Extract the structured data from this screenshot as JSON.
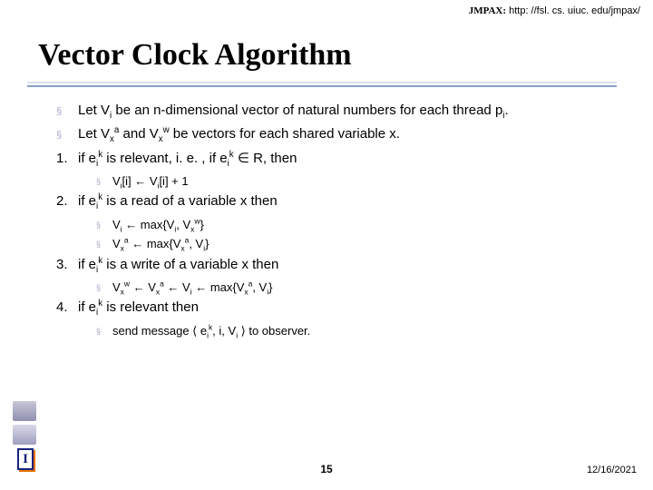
{
  "header": {
    "label": "JMPAX:",
    "url": "http: //fsl. cs. uiuc. edu/jmpax/"
  },
  "title": "Vector Clock Algorithm",
  "bullets": [
    {
      "marker": "§",
      "html": "Let V<sub>i</sub> be an n-dimensional vector of natural numbers for each thread p<sub>i</sub>."
    },
    {
      "marker": "§",
      "html": "Let V<sub>x</sub><sup>a</sup> and V<sub>x</sub><sup>w</sup> be vectors for each shared variable x."
    }
  ],
  "steps": [
    {
      "num": "1.",
      "html": "if e<sub>i</sub><sup>k</sup> is relevant, i. e. , if e<sub>i</sub><sup>k</sup> ∈ R, then",
      "subs": [
        {
          "marker": "§",
          "html": "V<sub>i</sub>[i] ← V<sub>i</sub>[i] + 1"
        }
      ]
    },
    {
      "num": "2.",
      "html": "if e<sub>i</sub><sup>k</sup> is a read of a variable x then",
      "subs": [
        {
          "marker": "§",
          "html": "V<sub>i</sub> ← max{V<sub>i</sub>, V<sub>x</sub><sup>w</sup>}"
        },
        {
          "marker": "§",
          "html": "V<sub>x</sub><sup>a</sup> ← max{V<sub>x</sub><sup>a</sup>, V<sub>i</sub>}"
        }
      ]
    },
    {
      "num": "3.",
      "html": "if e<sub>i</sub><sup>k</sup> is a write of a variable x then",
      "subs": [
        {
          "marker": "§",
          "html": "V<sub>x</sub><sup>w</sup> ← V<sub>x</sub><sup>a</sup> ← V<sub>i</sub> ← max{V<sub>x</sub><sup>a</sup>, V<sub>i</sub>}"
        }
      ]
    },
    {
      "num": "4.",
      "html": "if e<sub>i</sub><sup>k</sup> is relevant then",
      "subs": [
        {
          "marker": "§",
          "html": "send message ⟨ e<sub>i</sub><sup>k</sup>, i, V<sub>i</sub> ⟩ to observer."
        }
      ]
    }
  ],
  "pageNumber": "15",
  "date": "12/16/2021",
  "logo": {
    "letter": "I"
  },
  "colors": {
    "titleUnderline": "#8aa0c8",
    "bulletMarker": "#a8a8c8",
    "illinoisBlue": "#1a237e",
    "illinoisOrange": "#e57200"
  }
}
